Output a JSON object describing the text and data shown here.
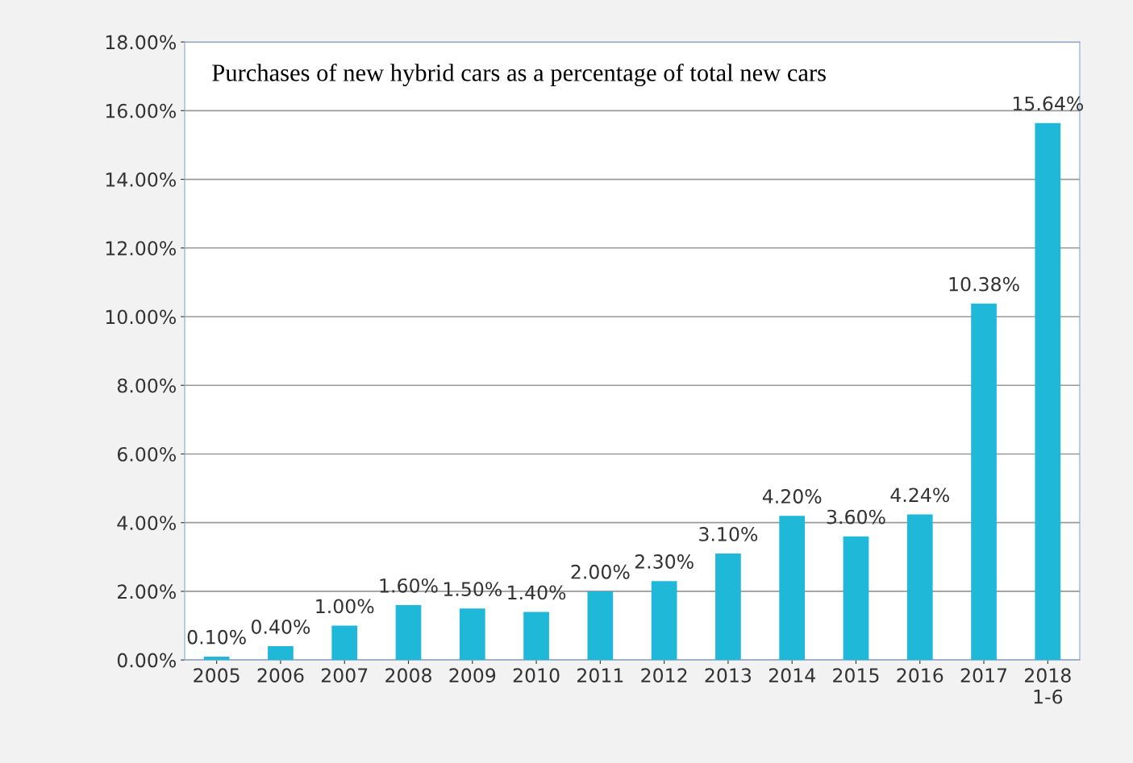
{
  "chart_data": {
    "type": "bar",
    "title": "Purchases of new hybrid cars as a percentage of total new cars",
    "categories": [
      "2005",
      "2006",
      "2007",
      "2008",
      "2009",
      "2010",
      "2011",
      "2012",
      "2013",
      "2014",
      "2015",
      "2016",
      "2017",
      "2018\n1-6"
    ],
    "values": [
      0.1,
      0.4,
      1.0,
      1.6,
      1.5,
      1.4,
      2.0,
      2.3,
      3.1,
      4.2,
      3.6,
      4.24,
      10.38,
      15.64
    ],
    "value_labels": [
      "0.10%",
      "0.40%",
      "1.00%",
      "1.60%",
      "1.50%",
      "1.40%",
      "2.00%",
      "2.30%",
      "3.10%",
      "4.20%",
      "3.60%",
      "4.24%",
      "10.38%",
      "15.64%"
    ],
    "color": "#1fb8d8",
    "ylim": [
      0,
      18
    ],
    "yticks": [
      {
        "value": 0,
        "label": "0.00%"
      },
      {
        "value": 2,
        "label": "2.00%"
      },
      {
        "value": 4,
        "label": "4.00%"
      },
      {
        "value": 6,
        "label": "6.00%"
      },
      {
        "value": 8,
        "label": "8.00%"
      },
      {
        "value": 10,
        "label": "10.00%"
      },
      {
        "value": 12,
        "label": "12.00%"
      },
      {
        "value": 14,
        "label": "14.00%"
      },
      {
        "value": 16,
        "label": "16.00%"
      },
      {
        "value": 18,
        "label": "18.00%"
      }
    ],
    "grid": "y"
  }
}
